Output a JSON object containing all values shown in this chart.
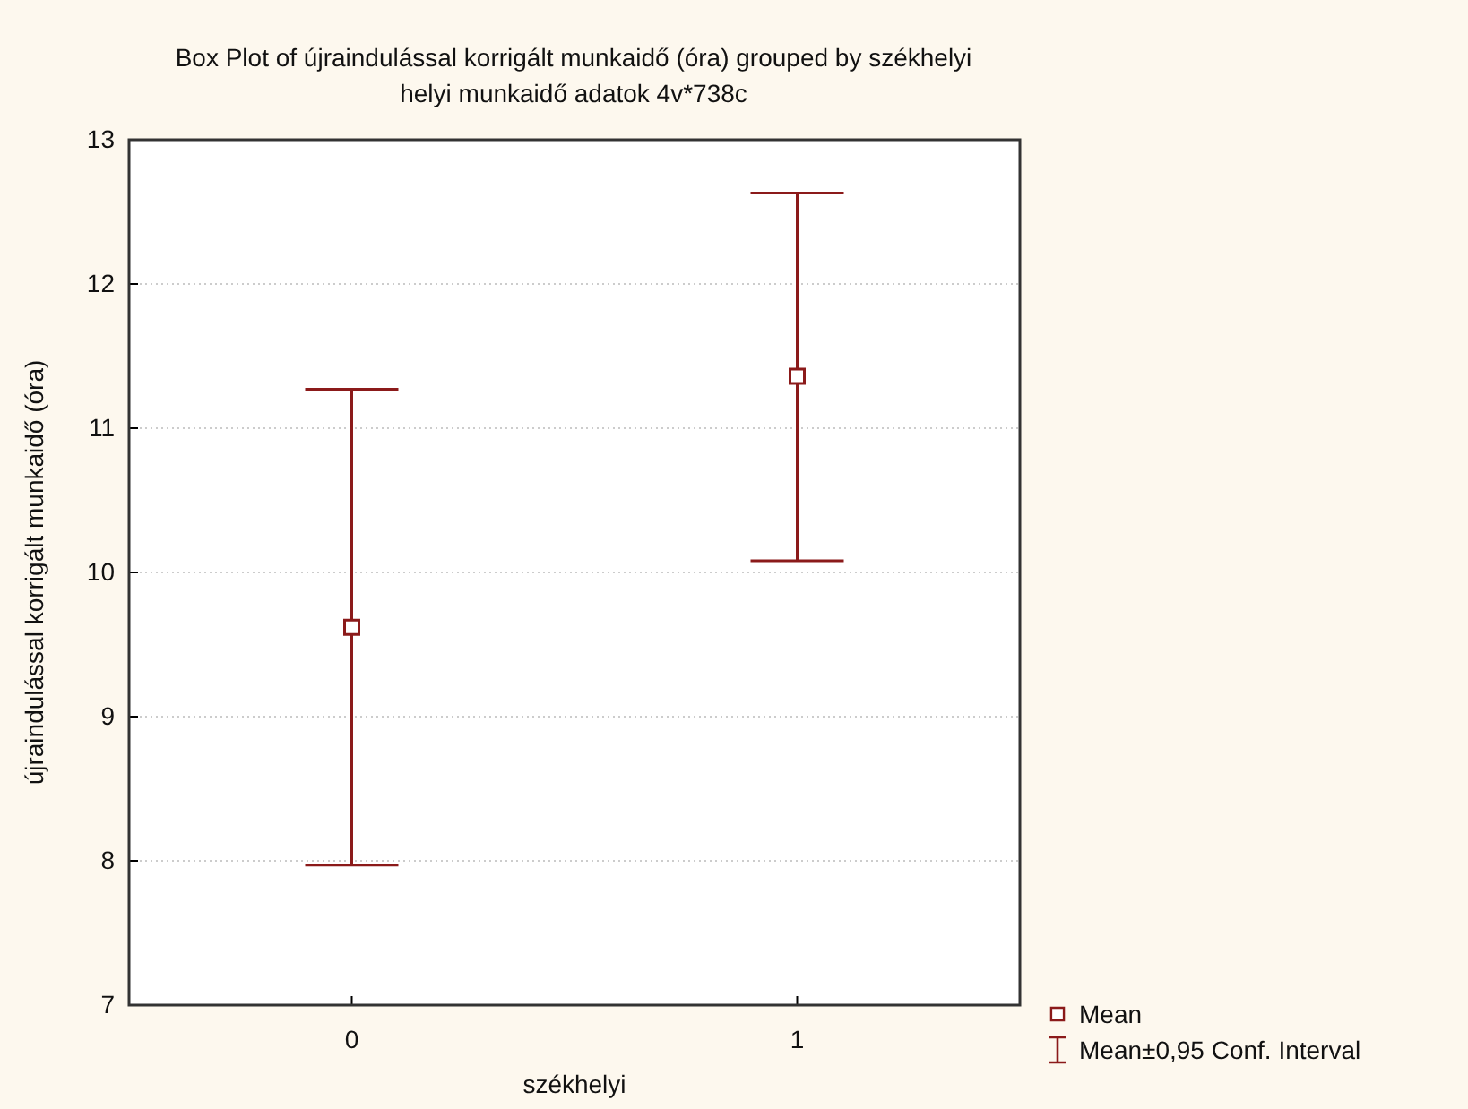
{
  "chart_data": {
    "type": "scatter",
    "title": "Box Plot of újraindulással korrigált munkaidő (óra) grouped by  székhelyi\nhelyi munkaidő adatok 4v*738c",
    "xlabel": "székhelyi",
    "ylabel": "újraindulással korrigált munkaidő (óra)",
    "categories": [
      "0",
      "1"
    ],
    "series": [
      {
        "name": "Mean",
        "color": "#8b1a1a",
        "values": [
          9.62,
          11.36
        ],
        "errors": [
          [
            7.97,
            11.27
          ],
          [
            10.08,
            12.63
          ]
        ]
      }
    ],
    "annotations": [
      "Mean±0,95 Conf. Interval"
    ],
    "ylim": [
      7,
      13
    ],
    "yticks": [
      7,
      8,
      9,
      10,
      11,
      12,
      13
    ],
    "grid": "y",
    "legend": "bottom right",
    "marker": "square"
  }
}
